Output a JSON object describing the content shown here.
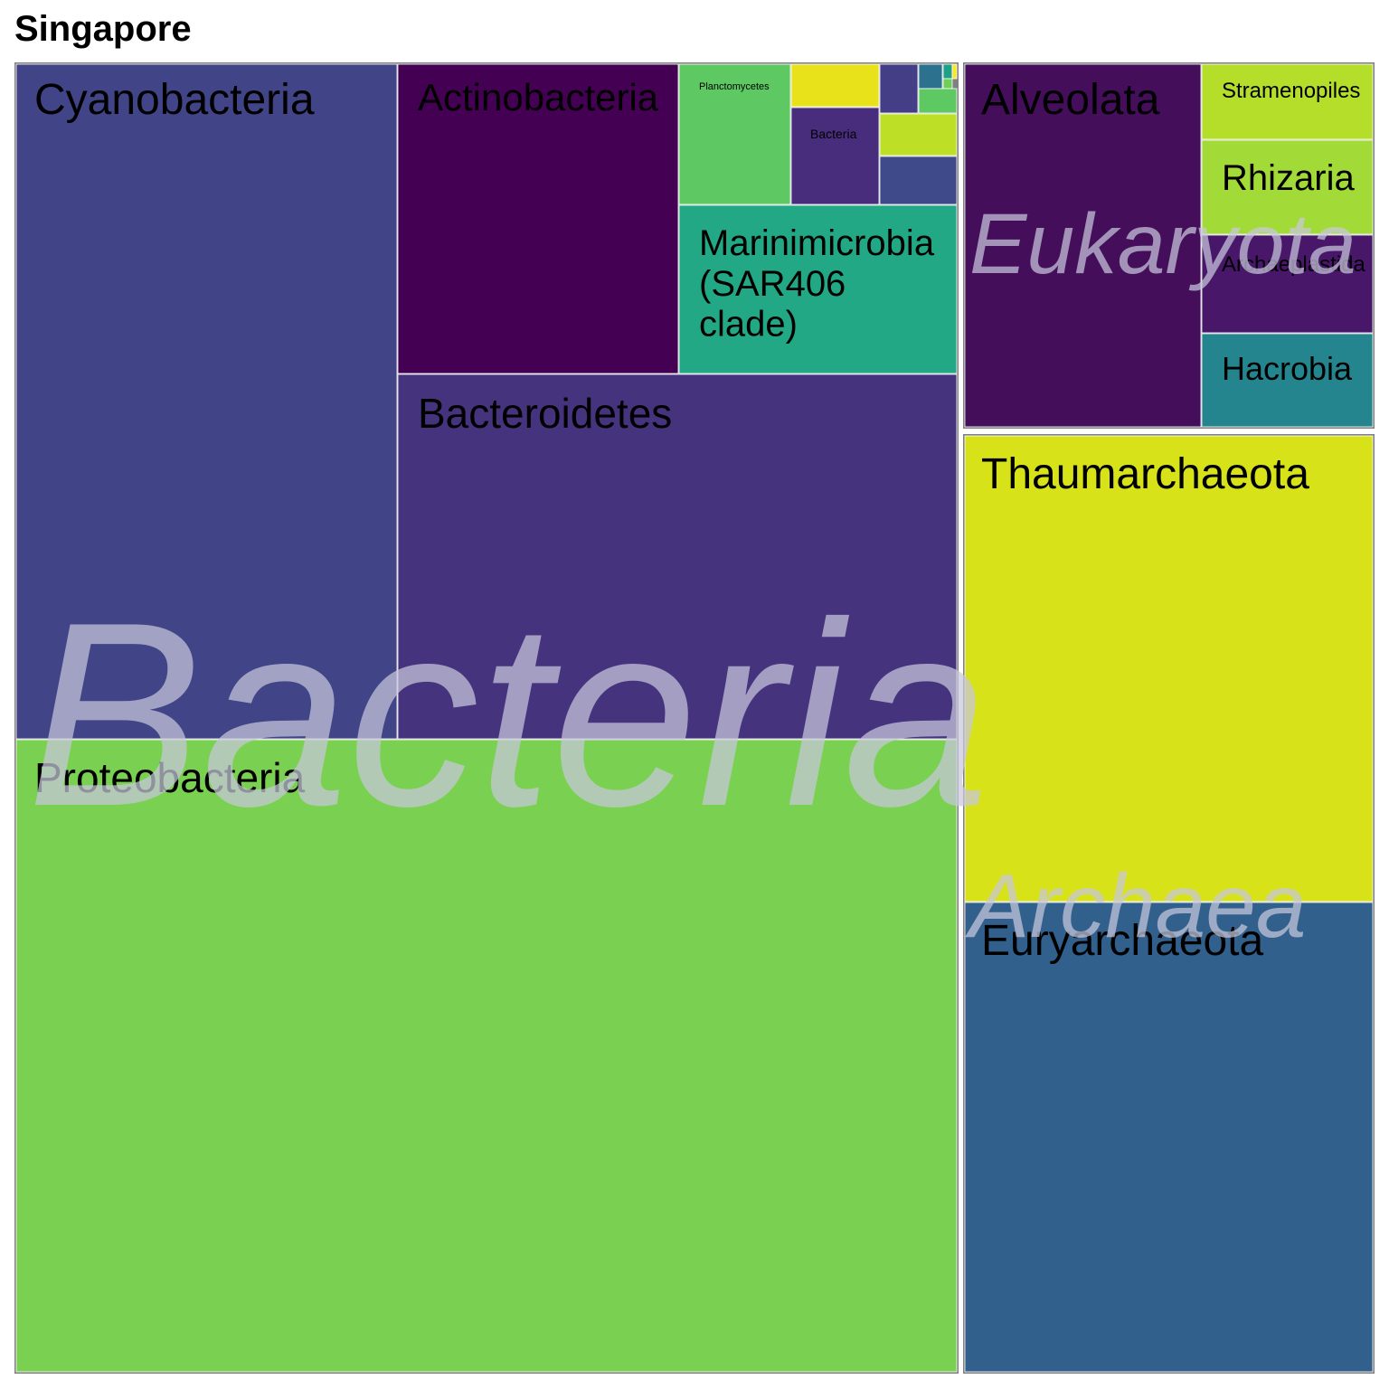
{
  "chart_data": {
    "type": "treemap",
    "title": "Singapore",
    "groups": [
      {
        "name": "Bacteria",
        "label_color": "#c8c8dc",
        "children": [
          {
            "name": "Cyanobacteria",
            "color": "#414487",
            "labeled": true
          },
          {
            "name": "Actinobacteria",
            "color": "#440154",
            "labeled": true
          },
          {
            "name": "Planctomycetes",
            "color": "#5ec962",
            "labeled": true
          },
          {
            "name": "",
            "color": "#e8e21b",
            "labeled": false
          },
          {
            "name": "Bacteria",
            "color": "#472d7b",
            "labeled": true
          },
          {
            "name": "",
            "color": "#433e85",
            "labeled": false
          },
          {
            "name": "",
            "color": "#2c728e",
            "labeled": false
          },
          {
            "name": "",
            "color": "#1fa187",
            "labeled": false
          },
          {
            "name": "",
            "color": "#6ece58",
            "labeled": false
          },
          {
            "name": "",
            "color": "#fde725",
            "labeled": false
          },
          {
            "name": "",
            "color": "#5ec962",
            "labeled": false
          },
          {
            "name": "",
            "color": "#bddf26",
            "labeled": false
          },
          {
            "name": "",
            "color": "#3e4a89",
            "labeled": false
          },
          {
            "name": "Marinimicrobia (SAR406 clade)",
            "color": "#22a884",
            "labeled": true
          },
          {
            "name": "Bacteroidetes",
            "color": "#46337e",
            "labeled": true
          },
          {
            "name": "Proteobacteria",
            "color": "#7ad151",
            "labeled": true
          }
        ]
      },
      {
        "name": "Eukaryota",
        "label_color": "#c8c8dc",
        "children": [
          {
            "name": "Alveolata",
            "color": "#440e5a",
            "labeled": true
          },
          {
            "name": "Stramenopiles",
            "color": "#b5de2b",
            "labeled": true
          },
          {
            "name": "Rhizaria",
            "color": "#a2da37",
            "labeled": true
          },
          {
            "name": "Archaeplastida",
            "color": "#481769",
            "labeled": true
          },
          {
            "name": "Hacrobia",
            "color": "#25858e",
            "labeled": true
          }
        ]
      },
      {
        "name": "Archaea",
        "label_color": "#c8c8dc",
        "children": [
          {
            "name": "Thaumarchaeota",
            "color": "#d8e219",
            "labeled": true
          },
          {
            "name": "Euryarchaeota",
            "color": "#31608d",
            "labeled": true
          }
        ]
      }
    ],
    "frame_color": "#808080"
  }
}
